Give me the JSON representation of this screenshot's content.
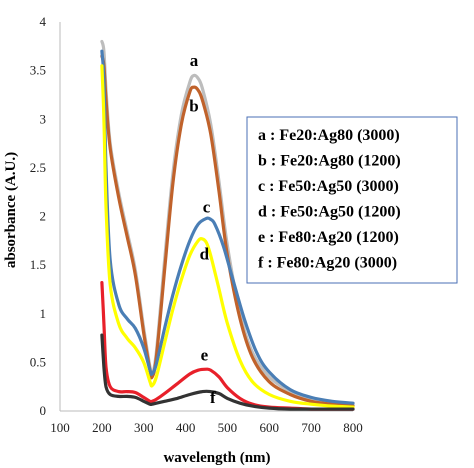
{
  "chart_data": {
    "type": "line",
    "xlabel": "wavelength (nm)",
    "ylabel": "absorbance (A.U.)",
    "xlim": [
      100,
      800
    ],
    "ylim": [
      0,
      4
    ],
    "xticks": [
      "100",
      "200",
      "300",
      "400",
      "500",
      "600",
      "700",
      "800"
    ],
    "yticks": [
      "0",
      "0.5",
      "1",
      "1.5",
      "2",
      "2.5",
      "3",
      "3.5",
      "4"
    ],
    "grid": false,
    "legend_position": "right",
    "series": [
      {
        "key": "a",
        "name": "a : Fe20:Ag80 (3000)",
        "color": "#bdbdbd",
        "x": [
          200,
          205,
          210,
          220,
          240,
          260,
          280,
          300,
          315,
          320,
          330,
          350,
          370,
          390,
          410,
          420,
          430,
          440,
          460,
          480,
          500,
          530,
          560,
          600,
          650,
          700,
          750,
          800
        ],
        "y": [
          3.8,
          3.7,
          3.3,
          2.75,
          2.25,
          1.85,
          1.45,
          0.85,
          0.45,
          0.37,
          0.6,
          1.55,
          2.45,
          3.05,
          3.38,
          3.45,
          3.42,
          3.32,
          2.95,
          2.35,
          1.7,
          1.0,
          0.6,
          0.35,
          0.2,
          0.12,
          0.08,
          0.06
        ]
      },
      {
        "key": "b",
        "name": "b : Fe20:Ag80 (1200)",
        "color": "#c0622b",
        "x": [
          200,
          205,
          210,
          220,
          240,
          260,
          280,
          300,
          315,
          320,
          330,
          350,
          370,
          390,
          410,
          420,
          430,
          440,
          460,
          480,
          500,
          530,
          560,
          600,
          650,
          700,
          750,
          800
        ],
        "y": [
          3.65,
          3.55,
          3.2,
          2.7,
          2.2,
          1.8,
          1.4,
          0.8,
          0.42,
          0.35,
          0.55,
          1.45,
          2.35,
          2.95,
          3.28,
          3.33,
          3.3,
          3.2,
          2.85,
          2.25,
          1.6,
          0.95,
          0.55,
          0.3,
          0.17,
          0.1,
          0.07,
          0.05
        ]
      },
      {
        "key": "c",
        "name": "c : Fe50:Ag50 (3000)",
        "color": "#4a7eb5",
        "x": [
          200,
          205,
          210,
          220,
          240,
          260,
          280,
          300,
          315,
          320,
          330,
          350,
          370,
          390,
          410,
          430,
          450,
          460,
          470,
          490,
          510,
          540,
          570,
          600,
          650,
          700,
          750,
          800
        ],
        "y": [
          3.7,
          3.4,
          2.5,
          1.55,
          1.1,
          0.95,
          0.85,
          0.65,
          0.42,
          0.38,
          0.48,
          0.85,
          1.2,
          1.5,
          1.75,
          1.92,
          1.98,
          1.97,
          1.92,
          1.7,
          1.4,
          0.95,
          0.6,
          0.4,
          0.22,
          0.14,
          0.1,
          0.08
        ]
      },
      {
        "key": "d",
        "name": "d : Fe50:Ag50 (1200)",
        "color": "#ffff00",
        "x": [
          200,
          205,
          210,
          220,
          240,
          260,
          280,
          300,
          315,
          320,
          330,
          350,
          370,
          390,
          410,
          430,
          440,
          450,
          460,
          480,
          500,
          530,
          560,
          600,
          650,
          700,
          750,
          800
        ],
        "y": [
          3.55,
          3.0,
          2.1,
          1.3,
          0.9,
          0.75,
          0.65,
          0.5,
          0.3,
          0.26,
          0.35,
          0.7,
          1.05,
          1.35,
          1.6,
          1.75,
          1.77,
          1.73,
          1.6,
          1.25,
          0.9,
          0.52,
          0.3,
          0.17,
          0.1,
          0.07,
          0.05,
          0.04
        ]
      },
      {
        "key": "e",
        "name": "e : Fe80:Ag20 (1200)",
        "color": "#e8202a",
        "x": [
          200,
          205,
          210,
          220,
          240,
          260,
          280,
          300,
          315,
          320,
          330,
          350,
          380,
          410,
          430,
          450,
          460,
          480,
          500,
          530,
          560,
          600,
          650,
          700,
          750,
          800
        ],
        "y": [
          1.32,
          0.9,
          0.45,
          0.25,
          0.2,
          0.2,
          0.19,
          0.14,
          0.1,
          0.1,
          0.12,
          0.18,
          0.28,
          0.38,
          0.42,
          0.43,
          0.42,
          0.35,
          0.24,
          0.13,
          0.07,
          0.04,
          0.03,
          0.02,
          0.02,
          0.02
        ]
      },
      {
        "key": "f",
        "name": "f : Fe80:Ag20 (3000)",
        "color": "#333333",
        "x": [
          200,
          205,
          210,
          220,
          240,
          260,
          280,
          300,
          315,
          320,
          330,
          350,
          380,
          410,
          440,
          460,
          480,
          500,
          530,
          560,
          600,
          650,
          700,
          750,
          800
        ],
        "y": [
          0.78,
          0.45,
          0.25,
          0.17,
          0.15,
          0.15,
          0.14,
          0.1,
          0.07,
          0.07,
          0.08,
          0.1,
          0.13,
          0.17,
          0.2,
          0.2,
          0.18,
          0.13,
          0.08,
          0.05,
          0.03,
          0.02,
          0.02,
          0.02,
          0.02
        ]
      }
    ],
    "annotations": [
      {
        "text": "a",
        "x": 420,
        "y": 3.55
      },
      {
        "text": "b",
        "x": 420,
        "y": 3.08
      },
      {
        "text": "c",
        "x": 450,
        "y": 2.04
      },
      {
        "text": "d",
        "x": 445,
        "y": 1.56
      },
      {
        "text": "e",
        "x": 445,
        "y": 0.52
      },
      {
        "text": "f",
        "x": 465,
        "y": 0.08
      }
    ]
  }
}
